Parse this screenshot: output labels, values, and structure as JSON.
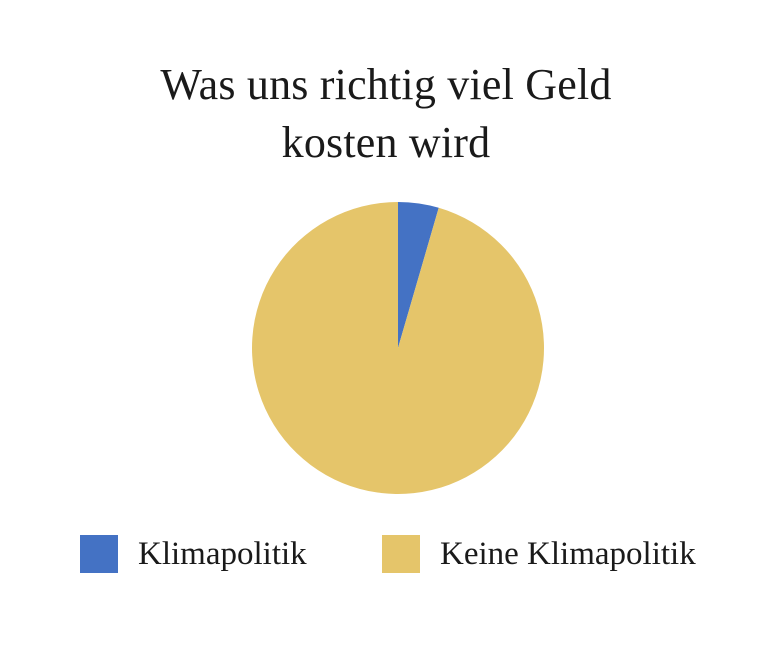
{
  "colors": {
    "klimapolitik": "#4472c4",
    "keine_klimapolitik": "#e5c56a"
  },
  "chart_data": {
    "type": "pie",
    "title": "Was uns richtig viel Geld kosten wird",
    "title_lines": [
      "Was uns richtig viel Geld",
      "kosten wird"
    ],
    "categories": [
      "Klimapolitik",
      "Keine Klimapolitik"
    ],
    "values": [
      4.5,
      95.5
    ],
    "unit": "percent",
    "start_angle": "12 o'clock",
    "direction": "clockwise",
    "legend_position": "bottom"
  }
}
